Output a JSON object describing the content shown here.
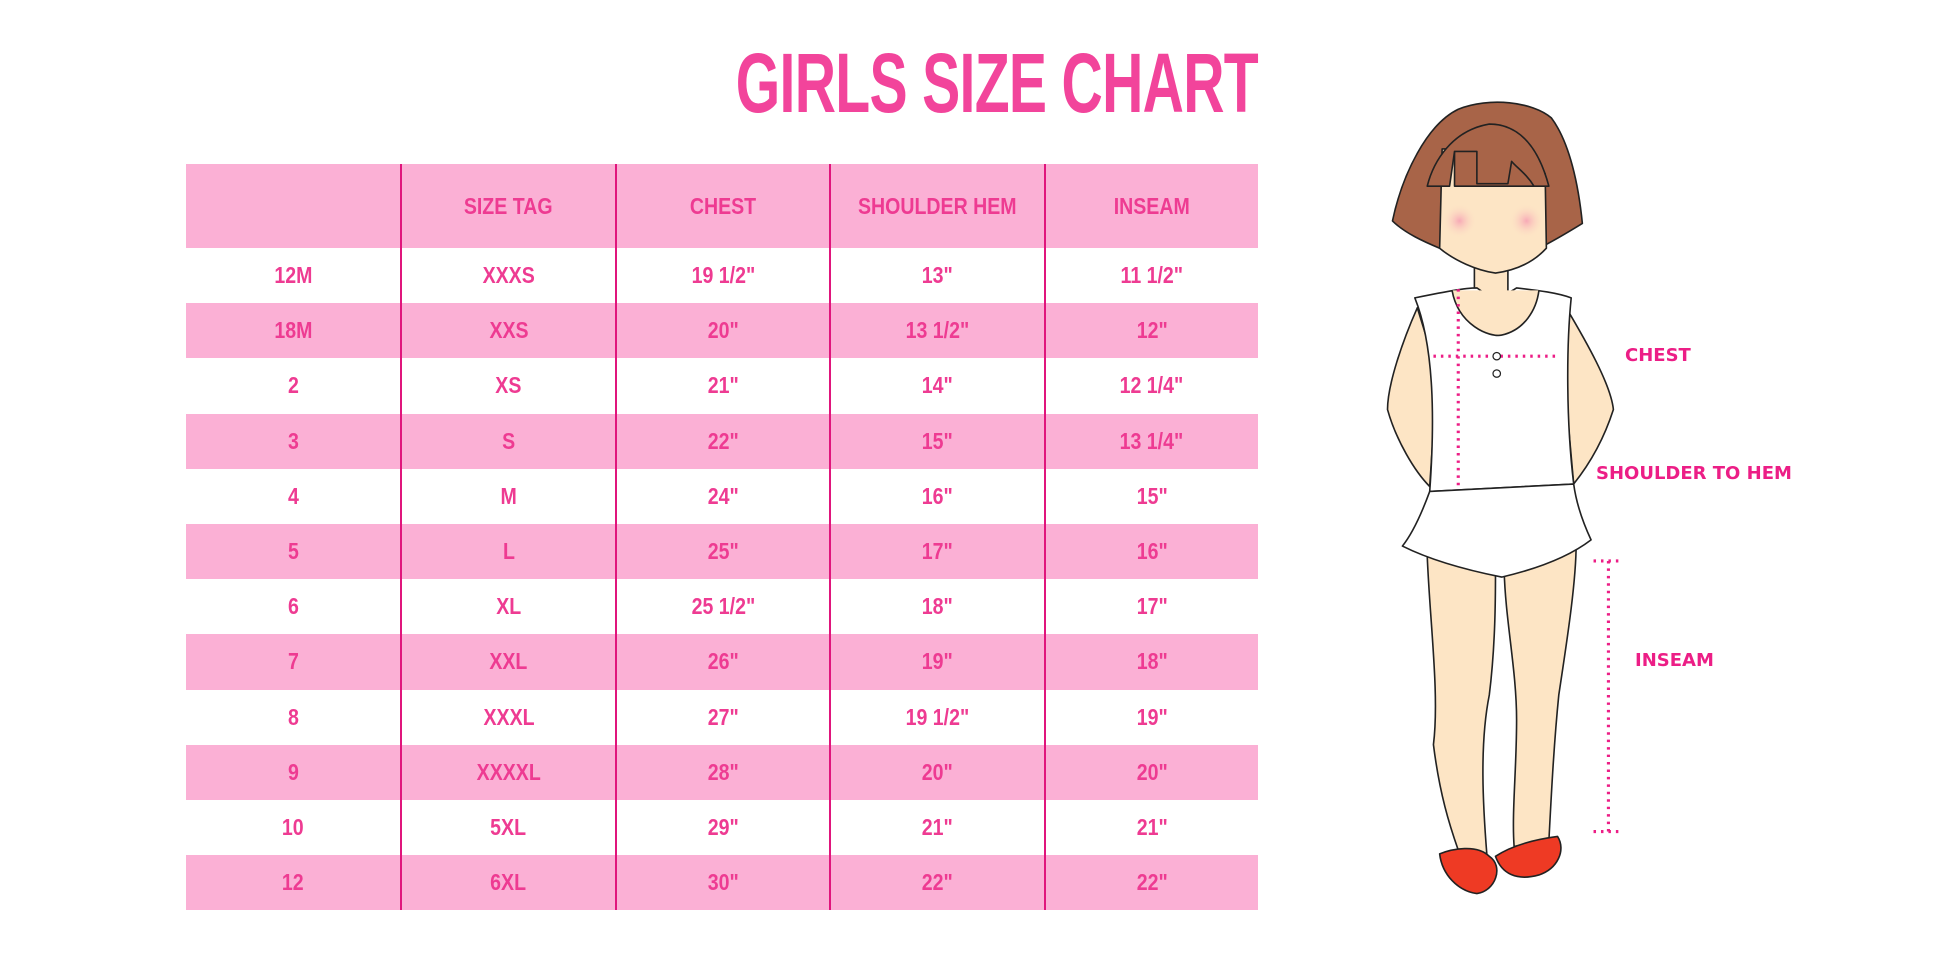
{
  "title": "GIRLS SIZE CHART",
  "colors": {
    "accent": "#ee3b92",
    "row_pink": "#fbb0d5",
    "divider": "#e0157c",
    "hair": "#a86448",
    "skin": "#fde5c5",
    "shoes": "#ee3a24"
  },
  "table": {
    "headers": [
      "",
      "SIZE TAG",
      "CHEST",
      "SHOULDER HEM",
      "INSEAM"
    ],
    "rows": [
      [
        "12M",
        "XXXS",
        "19 1/2\"",
        "13\"",
        "11 1/2\""
      ],
      [
        "18M",
        "XXS",
        "20\"",
        "13 1/2\"",
        "12\""
      ],
      [
        "2",
        "XS",
        "21\"",
        "14\"",
        "12 1/4\""
      ],
      [
        "3",
        "S",
        "22\"",
        "15\"",
        "13 1/4\""
      ],
      [
        "4",
        "M",
        "24\"",
        "16\"",
        "15\""
      ],
      [
        "5",
        "L",
        "25\"",
        "17\"",
        "16\""
      ],
      [
        "6",
        "XL",
        "25 1/2\"",
        "18\"",
        "17\""
      ],
      [
        "7",
        "XXL",
        "26\"",
        "19\"",
        "18\""
      ],
      [
        "8",
        "XXXL",
        "27\"",
        "19 1/2\"",
        "19\""
      ],
      [
        "9",
        "XXXXL",
        "28\"",
        "20\"",
        "20\""
      ],
      [
        "10",
        "5XL",
        "29\"",
        "21\"",
        "21\""
      ],
      [
        "12",
        "6XL",
        "30\"",
        "22\"",
        "22\""
      ]
    ]
  },
  "figure": {
    "labels": {
      "chest": "CHEST",
      "shoulder_to_hem": "SHOULDER TO HEM",
      "inseam": "INSEAM"
    }
  }
}
